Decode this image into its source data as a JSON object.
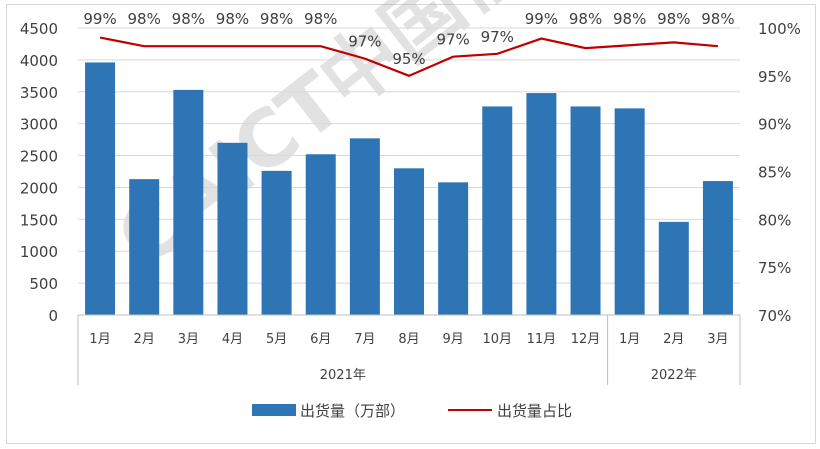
{
  "watermark": "CAICT中国信通院",
  "chart_data": {
    "type": "bar+line",
    "categories": [
      "1月",
      "2月",
      "3月",
      "4月",
      "5月",
      "6月",
      "7月",
      "8月",
      "9月",
      "10月",
      "11月",
      "12月",
      "1月",
      "2月",
      "3月"
    ],
    "groups": [
      {
        "label": "2021年",
        "count": 12
      },
      {
        "label": "2022年",
        "count": 3
      }
    ],
    "series": [
      {
        "name": "出货量（万部）",
        "type": "bar",
        "axis": "left",
        "color": "#2e75b6",
        "values": [
          3960,
          2130,
          3530,
          2700,
          2260,
          2520,
          2770,
          2300,
          2080,
          3270,
          3480,
          3270,
          3240,
          1460,
          2100
        ]
      },
      {
        "name": "出货量占比",
        "type": "line",
        "axis": "right",
        "color": "#c00000",
        "values": [
          99.0,
          98.1,
          98.1,
          98.1,
          98.1,
          98.1,
          96.8,
          95.0,
          97.0,
          97.3,
          98.9,
          97.9,
          98.2,
          98.5,
          98.1
        ],
        "labels": [
          "99%",
          "98%",
          "98%",
          "98%",
          "98%",
          "98%",
          "97%",
          "95%",
          "97%",
          "97%",
          "99%",
          "98%",
          "98%",
          "98%",
          "98%"
        ]
      }
    ],
    "yleft": {
      "lim": [
        0,
        4500
      ],
      "ticks": [
        0,
        500,
        1000,
        1500,
        2000,
        2500,
        3000,
        3500,
        4000,
        4500
      ]
    },
    "yright": {
      "lim": [
        70,
        100
      ],
      "ticks": [
        "70%",
        "75%",
        "80%",
        "85%",
        "90%",
        "95%",
        "100%"
      ]
    },
    "grid": true,
    "legend": "bottom"
  }
}
